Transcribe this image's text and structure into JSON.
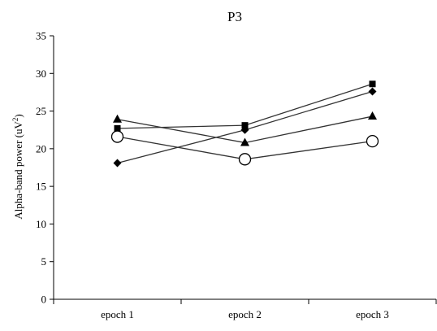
{
  "chart_data": {
    "type": "line",
    "title": "P3",
    "ylabel": "Alpha-band power (uV²)",
    "ylabel_base": "Alpha-band power (uV",
    "ylabel_sup": "2",
    "ylabel_close": ")",
    "xlabel": "",
    "categories": [
      "epoch 1",
      "epoch 2",
      "epoch 3"
    ],
    "ylim": [
      0,
      35
    ],
    "yticks": [
      0,
      5,
      10,
      15,
      20,
      25,
      30,
      35
    ],
    "grid": false,
    "legend": "none",
    "series": [
      {
        "marker": "square",
        "values": [
          22.7,
          23.1,
          28.6
        ]
      },
      {
        "marker": "diamond",
        "values": [
          18.1,
          22.5,
          27.6
        ]
      },
      {
        "marker": "triangle",
        "values": [
          23.9,
          20.8,
          24.3
        ]
      },
      {
        "marker": "circle-open",
        "values": [
          21.6,
          18.6,
          21.0
        ]
      }
    ],
    "colors": {
      "line": "#333333",
      "marker_fill": "#000000",
      "open_marker_fill": "#ffffff"
    }
  }
}
